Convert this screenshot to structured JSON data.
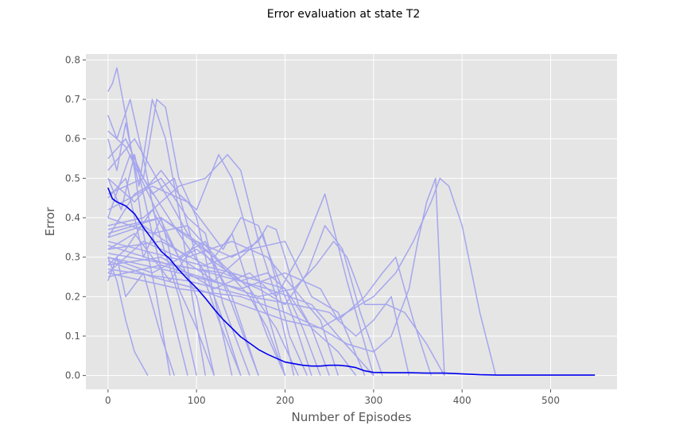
{
  "chart_data": {
    "type": "line",
    "title": "Error evaluation at state T2",
    "xlabel": "Number of Episodes",
    "ylabel": "Error",
    "xlim": [
      -25,
      575
    ],
    "ylim": [
      -0.035,
      0.815
    ],
    "x_ticks": [
      0,
      100,
      200,
      300,
      400,
      500
    ],
    "y_ticks": [
      0.0,
      0.1,
      0.2,
      0.3,
      0.4,
      0.5,
      0.6,
      0.7,
      0.8
    ],
    "grid": true,
    "colors": {
      "background": "#e5e5e5",
      "grid": "#ffffff",
      "runs": "#a6a6ee",
      "mean": "#0000ee"
    },
    "runs_series": [
      {
        "x": [
          0,
          5,
          10,
          20,
          30,
          40,
          55,
          70
        ],
        "y": [
          0.72,
          0.74,
          0.78,
          0.66,
          0.52,
          0.36,
          0.2,
          0.0
        ]
      },
      {
        "x": [
          0,
          10,
          25,
          40,
          55,
          80,
          100
        ],
        "y": [
          0.66,
          0.6,
          0.7,
          0.55,
          0.38,
          0.2,
          0.0
        ]
      },
      {
        "x": [
          0,
          10,
          20,
          35,
          50,
          65,
          80,
          95,
          110
        ],
        "y": [
          0.6,
          0.52,
          0.64,
          0.48,
          0.7,
          0.6,
          0.42,
          0.2,
          0.0
        ]
      },
      {
        "x": [
          0,
          15,
          30,
          50,
          70,
          90
        ],
        "y": [
          0.5,
          0.42,
          0.56,
          0.36,
          0.18,
          0.0
        ]
      },
      {
        "x": [
          0,
          10,
          20,
          30,
          45
        ],
        "y": [
          0.3,
          0.24,
          0.14,
          0.06,
          0.0
        ]
      },
      {
        "x": [
          0,
          10,
          20,
          40,
          60,
          75
        ],
        "y": [
          0.24,
          0.3,
          0.2,
          0.26,
          0.1,
          0.0
        ]
      },
      {
        "x": [
          0,
          20,
          40,
          55,
          65,
          80,
          100,
          120,
          140
        ],
        "y": [
          0.55,
          0.6,
          0.5,
          0.7,
          0.68,
          0.5,
          0.4,
          0.2,
          0.0
        ]
      },
      {
        "x": [
          0,
          20,
          40,
          60,
          80,
          100,
          120
        ],
        "y": [
          0.45,
          0.5,
          0.3,
          0.4,
          0.22,
          0.12,
          0.0
        ]
      },
      {
        "x": [
          0,
          25,
          50,
          75,
          100,
          125,
          150
        ],
        "y": [
          0.4,
          0.56,
          0.46,
          0.5,
          0.3,
          0.14,
          0.0
        ]
      },
      {
        "x": [
          0,
          30,
          60,
          90,
          110,
          130,
          160
        ],
        "y": [
          0.35,
          0.46,
          0.5,
          0.4,
          0.36,
          0.18,
          0.0
        ]
      },
      {
        "x": [
          0,
          20,
          50,
          80,
          110,
          140,
          170
        ],
        "y": [
          0.28,
          0.32,
          0.42,
          0.3,
          0.34,
          0.18,
          0.0
        ]
      },
      {
        "x": [
          0,
          30,
          60,
          80,
          100,
          125,
          140,
          160,
          180,
          200
        ],
        "y": [
          0.5,
          0.44,
          0.52,
          0.46,
          0.42,
          0.56,
          0.5,
          0.34,
          0.16,
          0.0
        ]
      },
      {
        "x": [
          0,
          40,
          80,
          110,
          135,
          150,
          170,
          190,
          210
        ],
        "y": [
          0.38,
          0.4,
          0.48,
          0.5,
          0.56,
          0.52,
          0.34,
          0.2,
          0.0
        ]
      },
      {
        "x": [
          0,
          30,
          70,
          100,
          120,
          140,
          160,
          180,
          200
        ],
        "y": [
          0.32,
          0.36,
          0.24,
          0.34,
          0.3,
          0.36,
          0.22,
          0.1,
          0.0
        ]
      },
      {
        "x": [
          0,
          50,
          90,
          130,
          150,
          170,
          190,
          210,
          230
        ],
        "y": [
          0.42,
          0.48,
          0.44,
          0.32,
          0.4,
          0.38,
          0.26,
          0.14,
          0.0
        ]
      },
      {
        "x": [
          0,
          40,
          80,
          120,
          160,
          175,
          190,
          205,
          225
        ],
        "y": [
          0.26,
          0.34,
          0.3,
          0.24,
          0.32,
          0.36,
          0.24,
          0.1,
          0.0
        ]
      },
      {
        "x": [
          0,
          60,
          100,
          140,
          170,
          180,
          190,
          200,
          215,
          230,
          250
        ],
        "y": [
          0.36,
          0.4,
          0.34,
          0.3,
          0.34,
          0.38,
          0.37,
          0.3,
          0.18,
          0.12,
          0.0
        ]
      },
      {
        "x": [
          0,
          50,
          100,
          150,
          180,
          200,
          220,
          240
        ],
        "y": [
          0.3,
          0.26,
          0.32,
          0.24,
          0.26,
          0.22,
          0.12,
          0.0
        ]
      },
      {
        "x": [
          0,
          60,
          120,
          160,
          190,
          220,
          245,
          270,
          300
        ],
        "y": [
          0.28,
          0.3,
          0.22,
          0.26,
          0.2,
          0.32,
          0.46,
          0.24,
          0.0
        ]
      },
      {
        "x": [
          0,
          70,
          130,
          170,
          200,
          225,
          245,
          265,
          285,
          310
        ],
        "y": [
          0.33,
          0.28,
          0.26,
          0.22,
          0.18,
          0.26,
          0.38,
          0.32,
          0.16,
          0.0
        ]
      },
      {
        "x": [
          0,
          60,
          120,
          170,
          210,
          235,
          255,
          270,
          290,
          315,
          335,
          360,
          380
        ],
        "y": [
          0.25,
          0.28,
          0.24,
          0.2,
          0.22,
          0.28,
          0.34,
          0.3,
          0.18,
          0.18,
          0.16,
          0.08,
          0.0
        ]
      },
      {
        "x": [
          0,
          80,
          150,
          200,
          240,
          260,
          290,
          310,
          325,
          345,
          365
        ],
        "y": [
          0.3,
          0.26,
          0.22,
          0.26,
          0.22,
          0.14,
          0.2,
          0.26,
          0.3,
          0.14,
          0.0
        ]
      },
      {
        "x": [
          0,
          90,
          160,
          210,
          250,
          280,
          300,
          320,
          340
        ],
        "y": [
          0.27,
          0.24,
          0.2,
          0.18,
          0.16,
          0.1,
          0.14,
          0.2,
          0.0
        ]
      },
      {
        "x": [
          0,
          80,
          150,
          200,
          240,
          270,
          300,
          325,
          345,
          365,
          375,
          385,
          400,
          420,
          438
        ],
        "y": [
          0.26,
          0.22,
          0.2,
          0.16,
          0.12,
          0.16,
          0.2,
          0.26,
          0.34,
          0.44,
          0.5,
          0.48,
          0.38,
          0.16,
          0.0
        ]
      },
      {
        "x": [
          0,
          50,
          100,
          150,
          200,
          240,
          270,
          300,
          320,
          340,
          350,
          360,
          370,
          380
        ],
        "y": [
          0.29,
          0.25,
          0.22,
          0.18,
          0.14,
          0.12,
          0.08,
          0.06,
          0.1,
          0.22,
          0.34,
          0.44,
          0.5,
          0.0
        ]
      },
      {
        "x": [
          0,
          100,
          180,
          230,
          260,
          280,
          300
        ],
        "y": [
          0.31,
          0.27,
          0.22,
          0.18,
          0.1,
          0.05,
          0.0
        ]
      },
      {
        "x": [
          0,
          70,
          140,
          200,
          230,
          260,
          280
        ],
        "y": [
          0.34,
          0.3,
          0.26,
          0.22,
          0.12,
          0.06,
          0.0
        ]
      },
      {
        "x": [
          0,
          60,
          120,
          160,
          180,
          200
        ],
        "y": [
          0.37,
          0.4,
          0.3,
          0.2,
          0.12,
          0.0
        ]
      },
      {
        "x": [
          0,
          40,
          80,
          110,
          130,
          150
        ],
        "y": [
          0.46,
          0.5,
          0.36,
          0.26,
          0.14,
          0.0
        ]
      },
      {
        "x": [
          0,
          20,
          50,
          80,
          100,
          120
        ],
        "y": [
          0.62,
          0.58,
          0.44,
          0.3,
          0.2,
          0.0
        ]
      },
      {
        "x": [
          0,
          30,
          60,
          90,
          120,
          140,
          170
        ],
        "y": [
          0.52,
          0.6,
          0.48,
          0.36,
          0.28,
          0.2,
          0.0
        ]
      },
      {
        "x": [
          0,
          40,
          90,
          140,
          180,
          210,
          240,
          260
        ],
        "y": [
          0.35,
          0.38,
          0.3,
          0.34,
          0.3,
          0.22,
          0.14,
          0.0
        ]
      },
      {
        "x": [
          0,
          60,
          110,
          160,
          200,
          230,
          260,
          290
        ],
        "y": [
          0.32,
          0.34,
          0.28,
          0.32,
          0.34,
          0.2,
          0.16,
          0.0
        ]
      },
      {
        "x": [
          0,
          50,
          90,
          130,
          160,
          190,
          215
        ],
        "y": [
          0.4,
          0.36,
          0.38,
          0.28,
          0.22,
          0.12,
          0.0
        ]
      }
    ],
    "mean_series": {
      "x": [
        0,
        5,
        10,
        20,
        30,
        40,
        50,
        60,
        70,
        80,
        90,
        100,
        110,
        120,
        130,
        140,
        150,
        160,
        170,
        180,
        190,
        200,
        210,
        220,
        230,
        240,
        250,
        260,
        270,
        280,
        290,
        300,
        320,
        340,
        360,
        380,
        400,
        420,
        440,
        460,
        480,
        500,
        520,
        550
      ],
      "y": [
        0.476,
        0.448,
        0.44,
        0.43,
        0.41,
        0.375,
        0.345,
        0.315,
        0.295,
        0.268,
        0.244,
        0.222,
        0.196,
        0.168,
        0.142,
        0.12,
        0.098,
        0.082,
        0.066,
        0.054,
        0.044,
        0.034,
        0.03,
        0.026,
        0.024,
        0.024,
        0.026,
        0.026,
        0.024,
        0.02,
        0.012,
        0.008,
        0.007,
        0.007,
        0.006,
        0.006,
        0.004,
        0.002,
        0.001,
        0.001,
        0.001,
        0.001,
        0.001,
        0.001
      ]
    }
  }
}
